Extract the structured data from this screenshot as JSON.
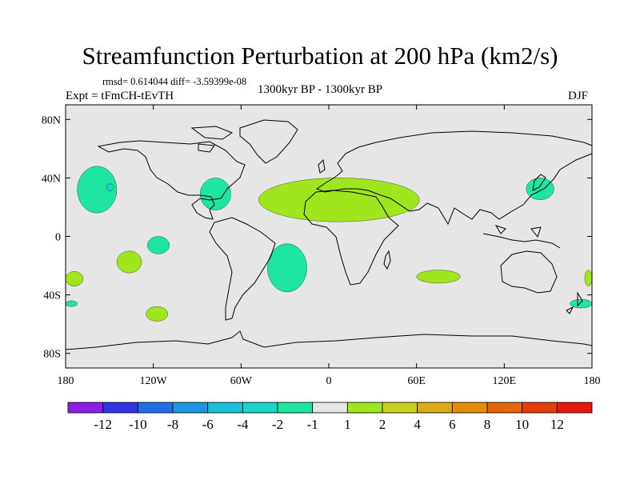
{
  "chart_data": {
    "type": "filled-contour-map",
    "title": "Streamfunction Perturbation at 200 hPa (km2/s)",
    "stats_line": "rmsd= 0.614044 diff= -3.59399e-08",
    "experiment": "Expt = tFmCH-tEvTH",
    "period": "1300kyr BP - 1300kyr BP",
    "season": "DJF",
    "lon_range": [
      -180,
      180
    ],
    "lat_range": [
      -90,
      90
    ],
    "lon_ticks": [
      {
        "value": -180,
        "label": "180"
      },
      {
        "value": -120,
        "label": "120W"
      },
      {
        "value": -60,
        "label": "60W"
      },
      {
        "value": 0,
        "label": "0"
      },
      {
        "value": 60,
        "label": "60E"
      },
      {
        "value": 120,
        "label": "120E"
      },
      {
        "value": 180,
        "label": "180"
      }
    ],
    "lat_ticks": [
      {
        "value": 80,
        "label": "80N"
      },
      {
        "value": 40,
        "label": "40N"
      },
      {
        "value": 0,
        "label": "0"
      },
      {
        "value": -40,
        "label": "40S"
      },
      {
        "value": -80,
        "label": "80S"
      }
    ],
    "colorbar": {
      "colors": [
        "#8c1ee6",
        "#3232e6",
        "#1e6ee6",
        "#1e96e6",
        "#19c0dc",
        "#19d7c8",
        "#1ee6a0",
        "#e6e6e6",
        "#a0e61e",
        "#c8d21e",
        "#dcaa14",
        "#e68c0a",
        "#e6640a",
        "#e63c0a",
        "#e6190a"
      ],
      "labels": [
        "-12",
        "-10",
        "-8",
        "-6",
        "-4",
        "-2",
        "-1",
        "1",
        "2",
        "4",
        "6",
        "8",
        "10",
        "12"
      ]
    },
    "anomalies": [
      {
        "name": "north-pacific-low",
        "sign": "negative",
        "color": "#1ee6a0",
        "lon": [
          -172,
          -145
        ],
        "lat": [
          16,
          48
        ]
      },
      {
        "name": "north-pacific-core",
        "sign": "negative",
        "color": "#19d7c8",
        "lon": [
          -152,
          -147
        ],
        "lat": [
          31,
          36
        ]
      },
      {
        "name": "central-pacific-low",
        "sign": "negative",
        "color": "#1ee6a0",
        "lon": [
          -124,
          -109
        ],
        "lat": [
          -12,
          0
        ]
      },
      {
        "name": "southeast-pacific-high",
        "sign": "positive",
        "color": "#a0e61e",
        "lon": [
          -145,
          -128
        ],
        "lat": [
          -25,
          -10
        ]
      },
      {
        "name": "caribbean-low",
        "sign": "negative",
        "color": "#1ee6a0",
        "lon": [
          -88,
          -67
        ],
        "lat": [
          18,
          40
        ]
      },
      {
        "name": "south-atlantic-low",
        "sign": "negative",
        "color": "#1ee6a0",
        "lon": [
          -42,
          -15
        ],
        "lat": [
          -38,
          -5
        ]
      },
      {
        "name": "south-pacific-high",
        "sign": "positive",
        "color": "#a0e61e",
        "lon": [
          -125,
          -110
        ],
        "lat": [
          -58,
          -48
        ]
      },
      {
        "name": "saharan-high",
        "sign": "positive",
        "color": "#a0e61e",
        "lon": [
          -48,
          62
        ],
        "lat": [
          10,
          40
        ]
      },
      {
        "name": "west-pacific-low",
        "sign": "negative",
        "color": "#1ee6a0",
        "lon": [
          135,
          154
        ],
        "lat": [
          25,
          40
        ]
      },
      {
        "name": "indian-ocean-high",
        "sign": "positive",
        "color": "#a0e61e",
        "lon": [
          60,
          90
        ],
        "lat": [
          -32,
          -23
        ]
      },
      {
        "name": "dateline-high-west",
        "sign": "positive",
        "color": "#a0e61e",
        "lon": [
          -180,
          -168
        ],
        "lat": [
          -34,
          -24
        ]
      },
      {
        "name": "dateline-high-east",
        "sign": "positive",
        "color": "#a0e61e",
        "lon": [
          175,
          180
        ],
        "lat": [
          -34,
          -23
        ]
      },
      {
        "name": "dateline-low-west",
        "sign": "negative",
        "color": "#1ee6a0",
        "lon": [
          -180,
          -172
        ],
        "lat": [
          -48,
          -44
        ]
      },
      {
        "name": "dateline-low-east",
        "sign": "negative",
        "color": "#1ee6a0",
        "lon": [
          165,
          180
        ],
        "lat": [
          -49,
          -43
        ]
      }
    ]
  }
}
